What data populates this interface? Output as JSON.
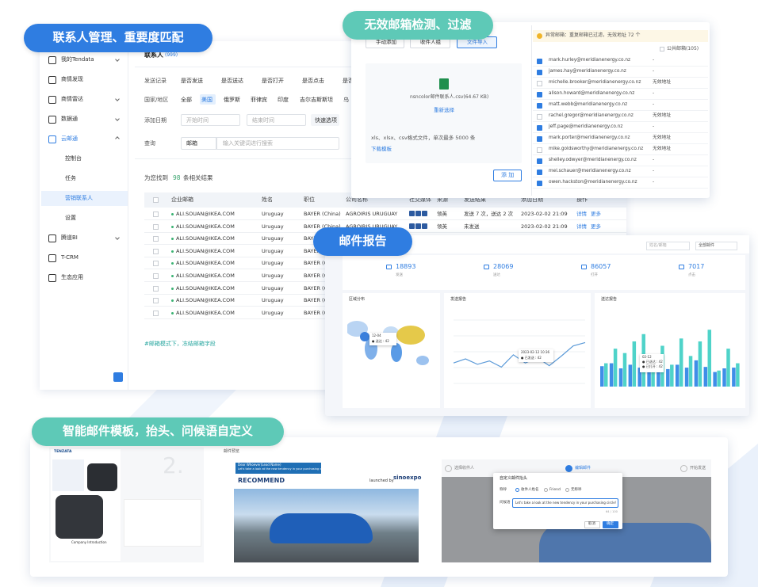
{
  "badges": [
    "联系人管理、重要度匹配",
    "无效邮箱检测、过滤",
    "邮件报告",
    "智能邮件模板，抬头、问候语自定义"
  ],
  "crm": {
    "menu": [
      "我的Tendata",
      "商情发现",
      "商情雷达",
      "数据通",
      "云邮通",
      "控制台",
      "任务",
      "营销联系人",
      "设置",
      "腾道BI",
      "T-CRM",
      "生态应用"
    ],
    "title": "联系人",
    "count": "(999)",
    "filters": [
      {
        "label": "发送记录",
        "options": [
          "是否发送",
          "是否送达",
          "是否打开",
          "是否点击",
          "是否"
        ]
      },
      {
        "label": "国家/地区",
        "options": [
          "全部",
          "美国",
          "俄罗斯",
          "菲律宾",
          "印度",
          "吉尔吉斯斯坦",
          "乌"
        ]
      },
      {
        "label": "添加日期",
        "options": [
          "开始时间",
          "结束时间",
          "快速选项"
        ]
      },
      {
        "label": "查询",
        "options": [
          "邮箱",
          "输入关键词进行搜索"
        ]
      }
    ],
    "result": [
      "为您找到",
      "98",
      "条相关结果"
    ],
    "columns": [
      "企业邮箱",
      "姓名",
      "职位",
      "公司名称",
      "社交媒体",
      "来源",
      "发送结果",
      "添加日期",
      "操作"
    ],
    "actions": [
      "详情",
      "更多"
    ],
    "rows": [
      {
        "email": "ALI.SOUAN@IKEA.COM",
        "name": "Uruguay",
        "position": "BAYER (China)",
        "company": "AGROIRIS URUGUAY",
        "source": "领英",
        "result": "发送 7 次，送达 2 次",
        "date": "2023-02-02  21:09"
      },
      {
        "email": "ALI.SOUAN@IKEA.COM",
        "name": "Uruguay",
        "position": "BAYER (China)",
        "company": "AGROIRIS URUGUAY",
        "source": "领英",
        "result": "未发送",
        "date": "2023-02-02  21:09"
      },
      {
        "email": "ALI.SOUAN@IKEA.COM",
        "name": "Uruguay",
        "position": "BAYER (China)"
      },
      {
        "email": "ALI.SOUAN@IKEA.COM",
        "name": "Uruguay",
        "position": "BAYER (China)"
      },
      {
        "email": "ALI.SOUAN@IKEA.COM",
        "name": "Uruguay",
        "position": "BAYER (China)"
      },
      {
        "email": "ALI.SOUAN@IKEA.COM",
        "name": "Uruguay",
        "position": "BAYER (China)"
      },
      {
        "email": "ALI.SOUAN@IKEA.COM",
        "name": "Uruguay",
        "position": "BAYER (China)"
      },
      {
        "email": "ALI.SOUAN@IKEA.COM",
        "name": "Uruguay",
        "position": "BAYER (China)"
      },
      {
        "email": "ALI.SOUAN@IKEA.COM",
        "name": "Uruguay",
        "position": "BAYER (China)"
      }
    ],
    "footer": "#邮箱模式下，冻结邮箱字段"
  },
  "filecheck": {
    "buttons": [
      "手动添加",
      "收件人组",
      "文件导入"
    ],
    "file": "nsncolor邮件联系人.csv(64.67 KB)",
    "reselect": "重新选择",
    "note": "xls、xlsx、csv格式文件，单次最多 5000 条",
    "download": "下载模板",
    "add": "添 加",
    "notice": "异常邮箱：重复邮箱已过滤，无效地址 72 个",
    "public": "公共邮箱(105)",
    "list": [
      {
        "email": "mark.hurley@meridianenergy.co.nz",
        "status": "-",
        "checked": true
      },
      {
        "email": "james.hay@meridianenergy.co.nz",
        "status": "-",
        "checked": true
      },
      {
        "email": "michelle.brooker@meridianenergy.co.nz",
        "status": "无效地址",
        "checked": false
      },
      {
        "email": "alison.howard@meridianenergy.co.nz",
        "status": "-",
        "checked": true
      },
      {
        "email": "matt.webb@meridianenergy.co.nz",
        "status": "-",
        "checked": true
      },
      {
        "email": "rachel.gregor@meridianenergy.co.nz",
        "status": "无效地址",
        "checked": false
      },
      {
        "email": "jeff.page@meridianenergy.co.nz",
        "status": "-",
        "checked": true
      },
      {
        "email": "mark.porter@meridianenergy.co.nz",
        "status": "无效地址",
        "checked": true
      },
      {
        "email": "mike.goldsworthy@meridianenergy.co.nz",
        "status": "无效地址",
        "checked": false
      },
      {
        "email": "shelley.odwyer@meridianenergy.co.nz",
        "status": "-",
        "checked": true
      },
      {
        "email": "mel.schauer@meridianenergy.co.nz",
        "status": "-",
        "checked": true
      },
      {
        "email": "owen.hackston@meridianenergy.co.nz",
        "status": "-",
        "checked": true
      }
    ]
  },
  "report": {
    "search": "姓名/邮箱",
    "filter": "全部邮件",
    "stats": [
      {
        "value": "18893",
        "label": "发送"
      },
      {
        "value": "28069",
        "label": "送达"
      },
      {
        "value": "86057",
        "label": "打开"
      },
      {
        "value": "7017",
        "label": "点击"
      }
    ],
    "cards": [
      "区域分布",
      "发送报告",
      "送达报告"
    ],
    "map_tip": [
      "12-04",
      "● 送达 : 42"
    ],
    "line_tip": [
      "2023-02-12 10:36",
      "● 已发送 : 42"
    ],
    "bar_tip": [
      "02-12",
      "● 已送达 : 42",
      "● 已打开 : 42"
    ],
    "line": {
      "type": "line",
      "ylim": [
        0,
        100
      ],
      "color": "#5b9ad8",
      "values": [
        30,
        36,
        28,
        33,
        24,
        42,
        30,
        38,
        26,
        40,
        55,
        60
      ]
    },
    "bars": {
      "type": "bar",
      "ylim": [
        0,
        100
      ],
      "series": [
        {
          "color": "#3f8ee8",
          "values": [
            28,
            32,
            25,
            30,
            26,
            27,
            33,
            24,
            30,
            26,
            36,
            27,
            20,
            25,
            26
          ]
        },
        {
          "color": "#4fd3c9",
          "values": [
            32,
            52,
            46,
            62,
            72,
            36,
            56,
            30,
            66,
            42,
            62,
            78,
            22,
            52,
            32
          ]
        }
      ]
    }
  },
  "templates": {
    "preview": "邮件预览",
    "left": {
      "logo": "TENZATA",
      "step": "2.",
      "company": "Company Introduction"
    },
    "mid": {
      "dear": "Dear Whoever(Lead Name)",
      "line": "Let's take a look at the new tendency in your purchasing circle!",
      "recommend": "RECOMMEND",
      "launched": "launched by",
      "brand": "sinoexpo"
    },
    "right": {
      "steps": [
        "选择收件人",
        "编辑邮件",
        "开始发送"
      ],
      "dialog": "自定义邮件抬头",
      "salutation": "称呼",
      "options": [
        "收件人姓名",
        "Friend",
        "无称呼"
      ],
      "greeting": "问候语",
      "greeting_text": "Let's take a look at the new tendency in your purchasing circle!",
      "count": "64 / 100",
      "cancel": "取消",
      "ok": "确定"
    }
  }
}
